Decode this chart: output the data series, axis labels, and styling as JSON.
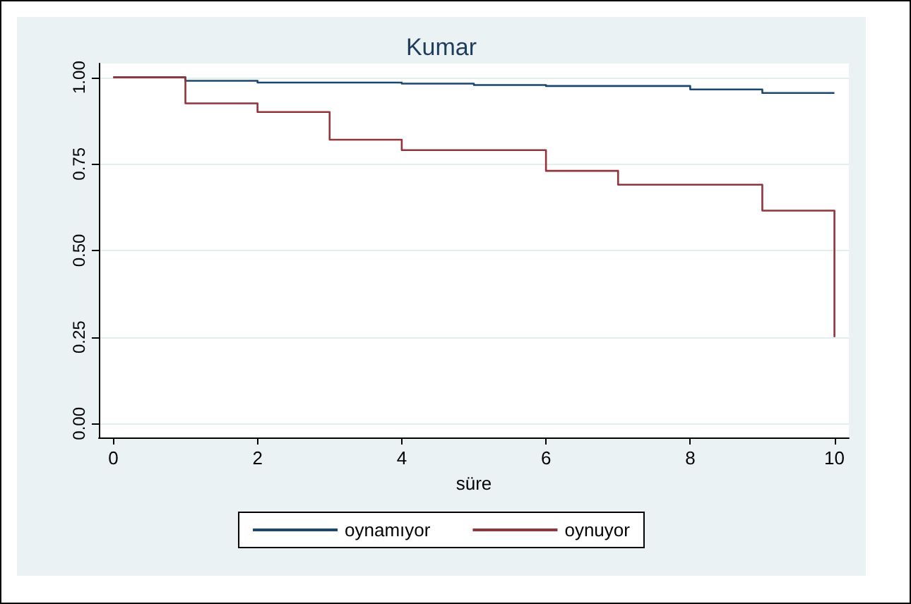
{
  "chart_data": {
    "type": "step",
    "title": "Kumar",
    "xlabel": "süre",
    "series": [
      {
        "name": "oynamıyor",
        "color": "#1a476f",
        "x": [
          0,
          1,
          2,
          4,
          5,
          6,
          8,
          9,
          10
        ],
        "values": [
          1,
          0.99,
          0.985,
          0.982,
          0.978,
          0.975,
          0.965,
          0.955,
          0.955
        ]
      },
      {
        "name": "oynuyor",
        "color": "#90353b",
        "x": [
          0,
          1,
          2,
          3,
          4,
          6,
          7,
          9,
          10
        ],
        "values": [
          1,
          0.925,
          0.9,
          0.82,
          0.79,
          0.73,
          0.69,
          0.615,
          0.25
        ]
      }
    ],
    "xlim": [
      -0.2,
      10.2
    ],
    "xticks": [
      0,
      2,
      4,
      6,
      8,
      10
    ],
    "ylim": [
      -0.04,
      1.04
    ],
    "yticks": [
      {
        "value": 0,
        "label": "0.00"
      },
      {
        "value": 0.25,
        "label": "0.25"
      },
      {
        "value": 0.5,
        "label": "0.50"
      },
      {
        "value": 0.75,
        "label": "0.75"
      },
      {
        "value": 1,
        "label": "1.00"
      }
    ],
    "grid": "y",
    "legend": "bottom",
    "marker": "none",
    "line_style": "solid"
  }
}
